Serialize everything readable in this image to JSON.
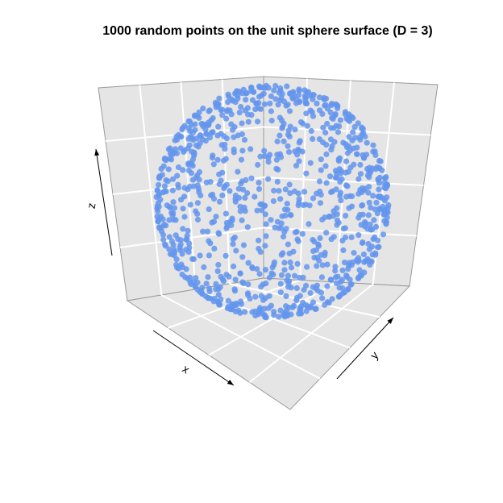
{
  "chart_data": {
    "type": "scatter",
    "dimension": "3d",
    "title": "1000 random points on the unit sphere surface (D = 3)",
    "xlabel": "x",
    "ylabel": "y",
    "zlabel": "z",
    "n_points": 1000,
    "radius": 1,
    "xlim": [
      -1,
      1
    ],
    "ylim": [
      -1,
      1
    ],
    "zlim": [
      -1,
      1
    ],
    "grid": true,
    "point_color": "#6495ED",
    "panel_color": "#E5E5E5",
    "grid_color": "#FFFFFF"
  }
}
